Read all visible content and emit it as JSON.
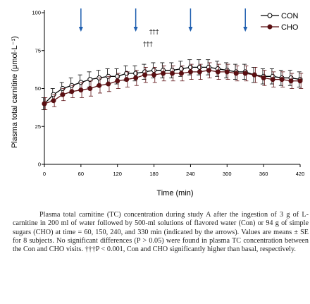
{
  "chart_data": {
    "type": "line",
    "title": "",
    "xlabel": "Time (min)",
    "ylabel": "Plasma total carnitine (μmol·L⁻¹)",
    "xlim": [
      0,
      420
    ],
    "ylim": [
      0,
      100
    ],
    "x_ticks": [
      0,
      60,
      120,
      180,
      240,
      300,
      360,
      420
    ],
    "y_ticks": [
      0,
      25,
      50,
      75,
      100
    ],
    "legend_position": "top-right",
    "arrows_at_x": [
      60,
      150,
      240,
      330
    ],
    "x": [
      0,
      15,
      30,
      45,
      60,
      75,
      90,
      105,
      120,
      135,
      150,
      165,
      180,
      195,
      210,
      225,
      240,
      255,
      270,
      285,
      300,
      315,
      330,
      345,
      360,
      375,
      390,
      405,
      420
    ],
    "series": [
      {
        "name": "CON",
        "marker": "open-circle",
        "color": "#000000",
        "values": [
          40,
          46,
          50,
          52,
          54,
          56,
          57,
          58,
          58,
          60,
          60,
          61,
          62,
          62,
          62,
          63,
          64,
          64,
          64,
          63,
          62,
          61,
          61,
          59,
          58,
          58,
          57,
          57,
          56
        ],
        "errors": [
          4,
          4,
          4,
          5,
          5,
          5,
          5,
          5,
          5,
          5,
          5,
          5,
          5,
          5,
          5,
          5,
          5,
          5,
          5,
          5,
          5,
          5,
          5,
          5,
          5,
          5,
          5,
          5,
          5
        ]
      },
      {
        "name": "CHO",
        "marker": "filled-circle",
        "color": "#5a0f12",
        "values": [
          40,
          42,
          46,
          48,
          49,
          50,
          52,
          53,
          55,
          56,
          57,
          59,
          59,
          60,
          60,
          60,
          61,
          61,
          62,
          61,
          61,
          60,
          60,
          59,
          57,
          56,
          56,
          55,
          55
        ],
        "errors": [
          4,
          4,
          4,
          4,
          5,
          5,
          5,
          5,
          5,
          5,
          5,
          5,
          5,
          5,
          5,
          5,
          5,
          5,
          5,
          5,
          5,
          5,
          5,
          5,
          5,
          5,
          5,
          5,
          5
        ]
      }
    ],
    "annotations": [
      {
        "text": "†††",
        "x": 180,
        "y": 86
      },
      {
        "text": "†††",
        "x": 170,
        "y": 78
      }
    ]
  },
  "caption": "Plasma total carnitine (TC) concentration during study A after the ingestion of 3 g of L-carnitine in 200 ml of water followed by 500-ml solutions of flavored water (Con) or 94 g of simple sugars (CHO) at time = 60, 150, 240, and 330 min (indicated by the arrows). Values are means ± SE for 8 subjects. No significant differences (P > 0.05) were found in plasma TC concentration between the Con and CHO visits. †††P < 0.001, Con and CHO significantly higher than basal, respectively.",
  "colors": {
    "con": "#000000",
    "cho": "#5a0f12",
    "arrow": "#1f5fb0",
    "axis": "#000000"
  }
}
